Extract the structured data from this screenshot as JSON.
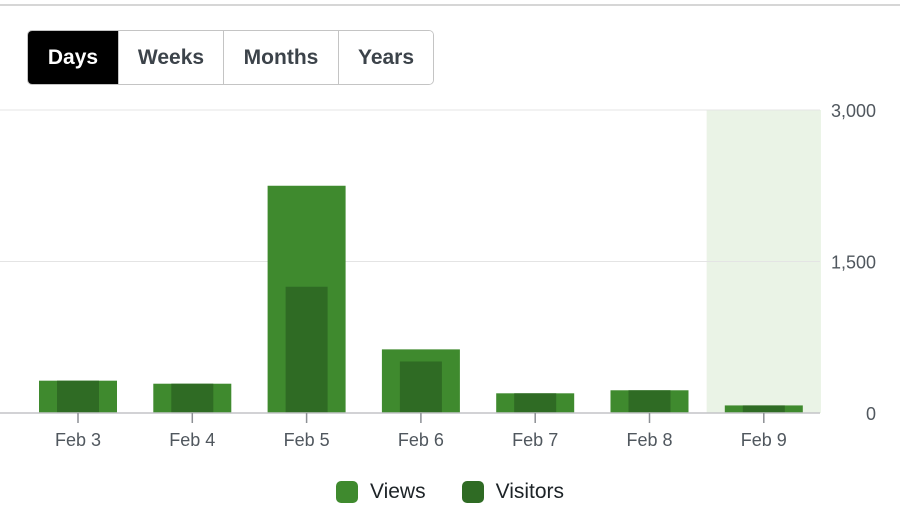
{
  "period_tabs": [
    {
      "label": "Days",
      "active": true
    },
    {
      "label": "Weeks",
      "active": false
    },
    {
      "label": "Months",
      "active": false
    },
    {
      "label": "Years",
      "active": false
    }
  ],
  "colors": {
    "views": "#3f8a2e",
    "visitors": "#2f6b24",
    "highlight": "#eaf3e6",
    "grid": "#e4e4e4",
    "axis": "#c3c4c7"
  },
  "chart_data": {
    "type": "bar",
    "categories": [
      "Feb 3",
      "Feb 4",
      "Feb 5",
      "Feb 6",
      "Feb 7",
      "Feb 8",
      "Feb 9"
    ],
    "series": [
      {
        "name": "Views",
        "values": [
          320,
          290,
          2250,
          630,
          195,
          225,
          75
        ]
      },
      {
        "name": "Visitors",
        "values": [
          320,
          290,
          1250,
          510,
          195,
          225,
          75
        ]
      }
    ],
    "ylim": [
      0,
      3000
    ],
    "yticks": [
      "0",
      "1,500",
      "3,000"
    ],
    "ytick_values": [
      0,
      1500,
      3000
    ],
    "highlighted_category": "Feb 9",
    "grid": true,
    "legend_position": "bottom-center"
  }
}
